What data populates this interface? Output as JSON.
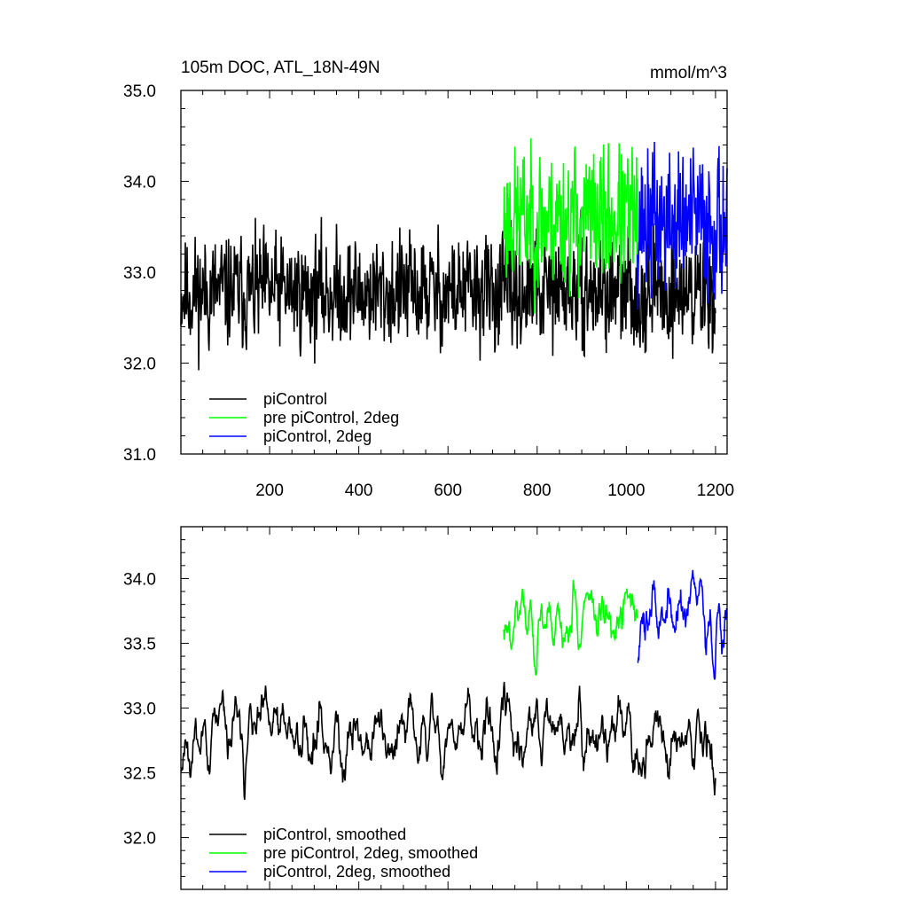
{
  "figure": {
    "title": "105m DOC, ATL_18N-49N",
    "units": "mmol/m^3"
  },
  "colors": {
    "piControl": "#000000",
    "pre_piControl_2deg": "#00ff00",
    "piControl_2deg": "#0000ff"
  },
  "chart_data": [
    {
      "type": "line",
      "title": "105m DOC, ATL_18N-49N",
      "units_label": "mmol/m^3",
      "xlabel": "",
      "ylabel": "",
      "xlim": [
        1,
        1226
      ],
      "ylim": [
        31.0,
        35.0
      ],
      "xticks": [
        200,
        400,
        600,
        800,
        1000,
        1200
      ],
      "xtick_labels": [
        "200",
        "400",
        "600",
        "800",
        "1000",
        "1200"
      ],
      "yticks": [
        31.0,
        32.0,
        33.0,
        34.0,
        35.0
      ],
      "ytick_labels": [
        "31.0",
        "32.0",
        "33.0",
        "34.0",
        "35.0"
      ],
      "legend_position": "bottom-left",
      "series": [
        {
          "name": "piControl",
          "color": "#000000",
          "x_start": 1,
          "x_end": 1200,
          "mean": 32.78,
          "noise": 0.42,
          "seed": 11
        },
        {
          "name": "pre piControl, 2deg",
          "color": "#00ff00",
          "x_start": 725,
          "x_end": 1025,
          "mean": 33.6,
          "noise": 0.52,
          "seed": 23
        },
        {
          "name": "piControl, 2deg",
          "color": "#0000ff",
          "x_start": 1025,
          "x_end": 1226,
          "mean": 33.55,
          "noise": 0.55,
          "seed": 37
        }
      ],
      "legend": [
        "piControl",
        "pre piControl, 2deg",
        "piControl, 2deg"
      ]
    },
    {
      "type": "line",
      "title": "",
      "xlabel": "",
      "ylabel": "",
      "xlim": [
        1,
        1226
      ],
      "ylim": [
        31.6,
        34.4
      ],
      "xticks": [
        200,
        400,
        600,
        800,
        1000,
        1200
      ],
      "yticks": [
        32.0,
        32.5,
        33.0,
        33.5,
        34.0
      ],
      "ytick_labels": [
        "32.0",
        "32.5",
        "33.0",
        "33.5",
        "34.0"
      ],
      "legend_position": "bottom-left",
      "series": [
        {
          "name": "piControl, smoothed",
          "color": "#000000",
          "x_start": 1,
          "x_end": 1200,
          "mean": 32.78,
          "noise": 0.28,
          "seed": 11
        },
        {
          "name": "pre piControl, 2deg, smoothed",
          "color": "#00ff00",
          "x_start": 725,
          "x_end": 1025,
          "mean": 33.7,
          "noise": 0.25,
          "seed": 23
        },
        {
          "name": "piControl, 2deg, smoothed",
          "color": "#0000ff",
          "x_start": 1025,
          "x_end": 1226,
          "mean": 33.72,
          "noise": 0.32,
          "seed": 37
        }
      ],
      "legend": [
        "piControl, smoothed",
        "pre piControl, 2deg, smoothed",
        "piControl, 2deg, smoothed"
      ]
    }
  ]
}
